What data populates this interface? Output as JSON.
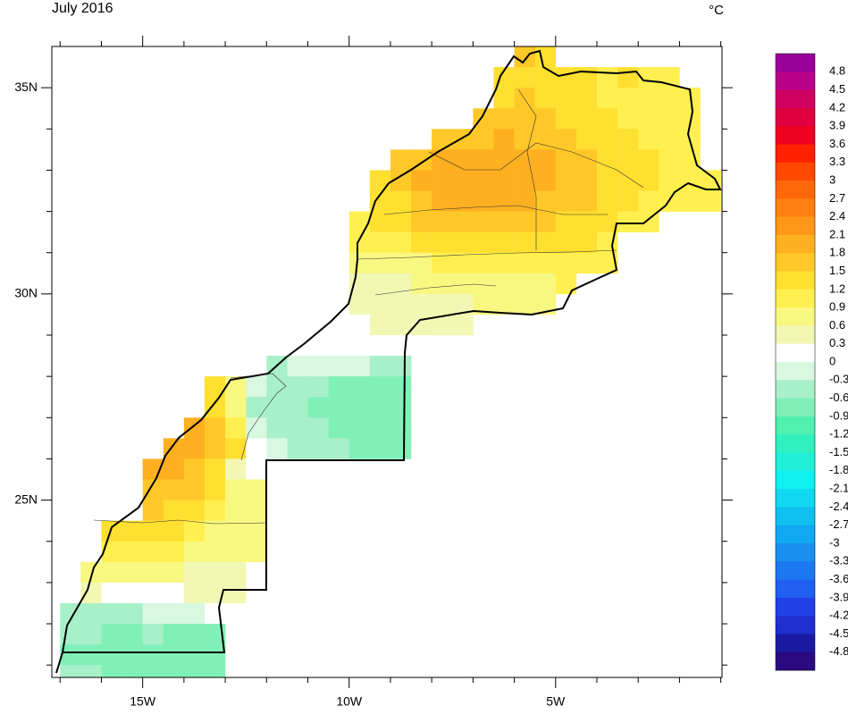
{
  "chart_data": {
    "type": "gridmap",
    "title": "July 2016",
    "unit": "°C",
    "xlim": [
      -17.2,
      -0.97
    ],
    "ylim": [
      20.7,
      36.0
    ],
    "xticks": [
      {
        "value": -15,
        "label": "15W"
      },
      {
        "value": -10,
        "label": "10W"
      },
      {
        "value": -5,
        "label": "5W"
      }
    ],
    "yticks": [
      {
        "value": 25,
        "label": "25N"
      },
      {
        "value": 30,
        "label": "30N"
      },
      {
        "value": 35,
        "label": "35N"
      }
    ],
    "xminorticks": [
      -17,
      -16,
      -14,
      -13,
      -12,
      -11,
      -9,
      -8,
      -7,
      -6,
      -4,
      -3,
      -2,
      -1
    ],
    "yminorticks": [
      21,
      22,
      23,
      24,
      26,
      27,
      28,
      29,
      31,
      32,
      33,
      34
    ],
    "cell": 0.5,
    "levels": [
      4.8,
      4.5,
      4.2,
      3.9,
      3.6,
      3.3,
      3,
      2.7,
      2.4,
      2.1,
      1.8,
      1.5,
      1.2,
      0.9,
      0.6,
      0.3,
      0,
      -0.3,
      -0.6,
      -0.9,
      -1.2,
      -1.5,
      -1.8,
      -2.1,
      -2.4,
      -2.7,
      -3,
      -3.3,
      -3.6,
      -3.9,
      -4.2,
      -4.5,
      -4.8
    ],
    "colors": [
      "#990099",
      "#b80088",
      "#d00060",
      "#e00040",
      "#f00020",
      "#ff2000",
      "#ff4800",
      "#ff6808",
      "#ff8010",
      "#ff9818",
      "#ffb020",
      "#ffc828",
      "#ffdf30",
      "#fff050",
      "#f8f880",
      "#f2f8b4",
      "#ffffff",
      "#d8f8e0",
      "#a8f0c8",
      "#80f0b8",
      "#50f0b0",
      "#30f0c0",
      "#20f0d8",
      "#10f0f0",
      "#10d8f0",
      "#10c0f0",
      "#10a8f0",
      "#1890f0",
      "#1a78f0",
      "#2060f0",
      "#2040e8",
      "#1f2fd0",
      "#1a1aa0",
      "#2a0a80"
    ],
    "rows": [
      {
        "lat": 35.75,
        "lon": -5.75,
        "values": [
          1.6,
          1.4
        ]
      },
      {
        "lat": 35.25,
        "lon": -6.25,
        "values": [
          1.3,
          1.4,
          1.3,
          1.2,
          1.2,
          1.1,
          1.2,
          1.1,
          1.0
        ]
      },
      {
        "lat": 34.75,
        "lon": -6.25,
        "values": [
          1.4,
          1.5,
          1.4,
          1.3,
          1.2,
          1.1,
          1.1,
          1.0,
          1.0,
          1.0
        ]
      },
      {
        "lat": 34.25,
        "lon": -6.75,
        "values": [
          1.5,
          1.6,
          1.6,
          1.5,
          1.4,
          1.3,
          1.2,
          1.1,
          1.1,
          1.0,
          1.0
        ]
      },
      {
        "lat": 33.75,
        "lon": -7.75,
        "values": [
          1.6,
          1.7,
          1.7,
          1.8,
          1.7,
          1.6,
          1.5,
          1.4,
          1.3,
          1.2,
          1.1,
          1.0,
          1.0
        ]
      },
      {
        "lat": 33.25,
        "lon": -8.75,
        "values": [
          1.5,
          1.7,
          1.8,
          1.9,
          2.0,
          1.9,
          1.9,
          1.8,
          1.7,
          1.5,
          1.4,
          1.3,
          1.2,
          1.1,
          1.0
        ]
      },
      {
        "lat": 32.75,
        "lon": -9.25,
        "values": [
          1.3,
          1.6,
          1.8,
          1.9,
          2.0,
          2.0,
          1.9,
          1.9,
          1.8,
          1.7,
          1.6,
          1.4,
          1.3,
          1.2,
          1.1,
          1.0,
          1.0
        ]
      },
      {
        "lat": 32.25,
        "lon": -9.25,
        "values": [
          1.2,
          1.4,
          1.6,
          1.8,
          1.8,
          1.9,
          1.8,
          1.8,
          1.7,
          1.6,
          1.5,
          1.4,
          1.2,
          1.1,
          1.0,
          1.0,
          1.0
        ]
      },
      {
        "lat": 31.75,
        "lon": -9.75,
        "values": [
          1.1,
          1.2,
          1.4,
          1.5,
          1.6,
          1.6,
          1.7,
          1.6,
          1.6,
          1.5,
          1.4,
          1.3,
          1.2,
          1.1,
          1.1
        ]
      },
      {
        "lat": 31.25,
        "lon": -9.75,
        "values": [
          1.0,
          1.0,
          1.1,
          1.2,
          1.3,
          1.4,
          1.4,
          1.4,
          1.3,
          1.3,
          1.2,
          1.2,
          1.1
        ]
      },
      {
        "lat": 30.75,
        "lon": -9.75,
        "values": [
          0.7,
          0.7,
          0.8,
          0.8,
          0.9,
          0.9,
          1.0,
          1.0,
          1.1,
          1.1,
          1.1,
          1.0,
          1.0
        ]
      },
      {
        "lat": 30.25,
        "lon": -9.75,
        "values": [
          0.5,
          0.5,
          0.5,
          0.6,
          0.6,
          0.7,
          0.7,
          0.8,
          0.8,
          0.8,
          0.9
        ]
      },
      {
        "lat": 29.75,
        "lon": -9.75,
        "values": [
          0.3,
          0.4,
          0.4,
          0.4,
          0.5,
          0.5,
          0.6,
          0.6,
          0.7,
          0.7
        ]
      },
      {
        "lat": 29.25,
        "lon": -10.25,
        "values": [
          0.2,
          0.2,
          0.3,
          0.3,
          0.4,
          0.4,
          0.5
        ]
      },
      {
        "lat": 28.75,
        "lon": -11.25,
        "values": [
          0.1,
          0.1,
          0.1,
          0.1,
          0.2,
          0.2,
          0.2
        ]
      },
      {
        "lat": 28.25,
        "lon": -11.75,
        "values": [
          -0.5,
          -0.3,
          -0.2,
          -0.2,
          -0.3,
          -0.4,
          -0.5
        ]
      },
      {
        "lat": 27.75,
        "lon": -13.25,
        "values": [
          1.3,
          0.8,
          -0.3,
          -0.5,
          -0.6,
          -0.6,
          -0.7,
          -0.7,
          -0.8,
          -0.8
        ]
      },
      {
        "lat": 27.25,
        "lon": -13.25,
        "values": [
          1.2,
          0.7,
          -0.4,
          -0.5,
          -0.6,
          -0.7,
          -0.7,
          -0.8,
          -0.9,
          -0.9
        ]
      },
      {
        "lat": 26.75,
        "lon": -13.75,
        "values": [
          1.9,
          1.6,
          1.0,
          -0.2,
          -0.4,
          -0.5,
          -0.6,
          -0.7,
          -0.8,
          -0.9,
          -0.9
        ]
      },
      {
        "lat": 26.25,
        "lon": -14.25,
        "values": [
          2.0,
          1.9,
          1.7,
          1.4,
          0.1,
          -0.1,
          -0.4,
          -0.5,
          -0.6,
          -0.8,
          -0.8,
          -0.9
        ]
      },
      {
        "lat": 25.75,
        "lon": -14.75,
        "values": [
          1.9,
          1.8,
          1.6,
          1.3,
          0.5,
          0.2
        ]
      },
      {
        "lat": 25.25,
        "lon": -14.75,
        "values": [
          1.7,
          1.6,
          1.5,
          1.2,
          0.8,
          0.6
        ]
      },
      {
        "lat": 24.75,
        "lon": -14.75,
        "values": [
          1.5,
          1.4,
          1.3,
          1.1,
          0.8,
          0.7
        ]
      },
      {
        "lat": 24.25,
        "lon": -15.75,
        "values": [
          1.3,
          1.4,
          1.3,
          1.2,
          1.0,
          0.8,
          0.7,
          0.7
        ]
      },
      {
        "lat": 23.75,
        "lon": -15.75,
        "values": [
          1.1,
          1.1,
          1.0,
          0.9,
          0.8,
          0.7,
          0.6,
          0.6
        ]
      },
      {
        "lat": 23.25,
        "lon": -16.25,
        "values": [
          0.7,
          0.7,
          0.6,
          0.6,
          0.6,
          0.5,
          0.5,
          0.4
        ]
      },
      {
        "lat": 22.75,
        "lon": -16.25,
        "values": [
          0.3,
          0.2,
          0.2,
          0.2,
          0.2,
          0.3,
          0.4,
          0.5
        ]
      },
      {
        "lat": 22.25,
        "lon": -16.75,
        "values": [
          -0.4,
          -0.4,
          -0.5,
          -0.4,
          -0.3,
          -0.2,
          -0.2,
          0.1
        ]
      },
      {
        "lat": 21.75,
        "lon": -16.75,
        "values": [
          -0.6,
          -0.6,
          -0.7,
          -0.7,
          -0.6,
          -0.7,
          -0.8,
          -0.8
        ]
      },
      {
        "lat": 21.25,
        "lon": -16.75,
        "values": [
          -0.7,
          -0.7,
          -0.7,
          -0.7,
          -0.7,
          -0.8,
          -0.8,
          -0.8
        ]
      },
      {
        "lat": 20.75,
        "lon": -16.75,
        "values": [
          -0.6,
          -0.6,
          -0.7,
          -0.7,
          -0.7,
          -0.7,
          -0.8,
          -0.8
        ]
      }
    ]
  }
}
